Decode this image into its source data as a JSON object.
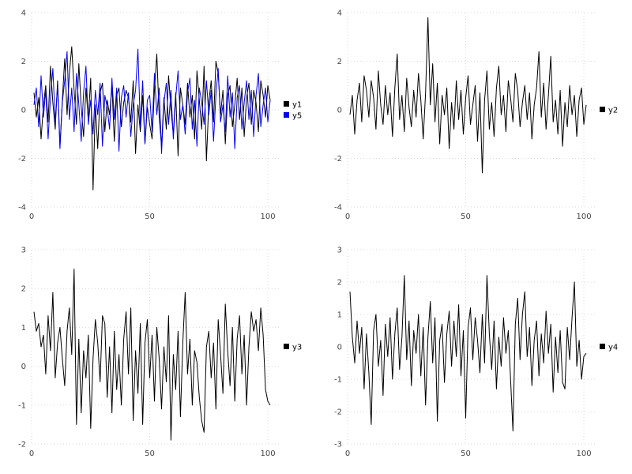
{
  "page": {
    "background": "#ffffff",
    "grid_color": "#d9d9d9",
    "tick_label_color": "#444444",
    "legend_text_color": "#000000"
  },
  "chart_data": [
    {
      "type": "line",
      "title": "",
      "xlabel": "",
      "ylabel": "",
      "xlim": [
        0,
        105
      ],
      "ylim": [
        -4,
        4
      ],
      "x_ticks": [
        0,
        50,
        100
      ],
      "y_ticks": [
        -4,
        -2,
        0,
        2,
        4
      ],
      "grid": "dotted",
      "legend_position": "right-center",
      "series": [
        {
          "name": "y1",
          "color": "#000000",
          "values": [
            0.7,
            -0.3,
            0.5,
            -1.2,
            0.2,
            1.0,
            -0.5,
            1.8,
            0.3,
            -0.8,
            1.2,
            -1.5,
            0.4,
            2.1,
            -0.2,
            1.5,
            2.6,
            0.8,
            -0.6,
            1.9,
            0.1,
            -1.1,
            0.9,
            -0.4,
            1.3,
            -3.3,
            0.2,
            -1.6,
            0.7,
            1.1,
            -0.9,
            0.4,
            -0.2,
            1.0,
            -1.3,
            0.6,
            0.9,
            -0.7,
            0.3,
            0.8,
            0.5,
            -0.5,
            1.2,
            -1.8,
            0.2,
            -0.9,
            0.6,
            -1.4,
            0.1,
            -0.6,
            -1.2,
            0.8,
            2.3,
            -0.3,
            -1.5,
            0.5,
            -0.8,
            1.4,
            0.0,
            -1.0,
            0.7,
            -1.9,
            0.9,
            0.2,
            -0.6,
            1.1,
            -0.3,
            0.6,
            -1.2,
            1.6,
            0.4,
            -0.8,
            1.8,
            -2.1,
            0.3,
            1.2,
            -0.5,
            2.0,
            1.5,
            -0.2,
            0.8,
            -1.4,
            0.6,
            1.0,
            -0.7,
            0.2,
            1.3,
            -0.4,
            0.9,
            -1.1,
            0.5,
            1.1,
            -0.6,
            0.8,
            0.3,
            -0.9,
            1.2,
            0.6,
            -0.3,
            1.0,
            0.4
          ]
        },
        {
          "name": "y5",
          "color": "#0000ee",
          "values": [
            0.2,
            0.9,
            -0.7,
            1.4,
            -0.3,
            0.8,
            -1.2,
            0.5,
            1.7,
            -0.5,
            1.0,
            -1.6,
            0.3,
            1.2,
            2.4,
            -0.4,
            0.9,
            -0.9,
            1.5,
            0.2,
            -1.3,
            0.7,
            1.8,
            -0.6,
            0.4,
            -1.0,
            0.8,
            -0.2,
            1.1,
            -1.5,
            0.6,
            0.1,
            -0.8,
            1.3,
            -0.4,
            0.9,
            -1.7,
            0.5,
            1.0,
            -0.3,
            0.7,
            -1.1,
            0.2,
            0.8,
            2.5,
            -0.7,
            1.2,
            -1.4,
            0.4,
            0.6,
            -0.9,
            1.5,
            -0.2,
            0.9,
            -1.8,
            0.3,
            1.1,
            -0.6,
            0.8,
            -1.2,
            0.5,
            1.6,
            -0.4,
            0.2,
            -1.0,
            0.7,
            1.3,
            -0.8,
            0.4,
            -1.5,
            0.9,
            0.3,
            -0.6,
            1.2,
            -0.2,
            0.8,
            -1.3,
            0.6,
            1.7,
            -0.5,
            0.2,
            -0.9,
            1.4,
            -0.3,
            0.7,
            -1.6,
            0.5,
            1.0,
            -0.8,
            0.3,
            1.2,
            -0.4,
            0.8,
            -1.1,
            0.6,
            1.5,
            -0.7,
            0.2,
            0.9,
            -0.5,
            0.4
          ]
        }
      ]
    },
    {
      "type": "line",
      "title": "",
      "xlabel": "",
      "ylabel": "",
      "xlim": [
        0,
        105
      ],
      "ylim": [
        -4,
        4
      ],
      "x_ticks": [
        0,
        50,
        100
      ],
      "y_ticks": [
        -4,
        -2,
        0,
        2,
        4
      ],
      "grid": "dotted",
      "legend_position": "right-center",
      "series": [
        {
          "name": "y2",
          "color": "#000000",
          "values": [
            -0.2,
            0.6,
            -1.0,
            0.4,
            1.1,
            -0.5,
            1.4,
            0.8,
            -0.3,
            1.2,
            0.5,
            -0.8,
            1.6,
            0.2,
            -0.6,
            1.0,
            -0.2,
            0.7,
            -1.1,
            0.9,
            2.3,
            -0.4,
            0.6,
            -0.9,
            1.3,
            0.1,
            -0.7,
            0.8,
            -0.3,
            1.5,
            0.4,
            -1.2,
            0.7,
            3.8,
            0.2,
            1.9,
            -0.5,
            1.1,
            -1.4,
            0.6,
            -0.2,
            0.9,
            -1.6,
            0.3,
            -0.8,
            1.2,
            -0.4,
            0.8,
            -1.0,
            0.5,
            1.4,
            -0.6,
            0.2,
            1.0,
            -1.3,
            0.7,
            -2.6,
            0.4,
            1.6,
            -0.8,
            0.3,
            -1.1,
            0.9,
            1.8,
            -0.2,
            0.6,
            -0.9,
            1.2,
            0.5,
            -0.5,
            1.5,
            0.8,
            -0.7,
            0.3,
            1.0,
            -0.4,
            0.7,
            -1.2,
            0.2,
            0.9,
            2.4,
            -0.3,
            1.1,
            -0.8,
            0.6,
            2.2,
            -0.5,
            0.4,
            -1.0,
            0.8,
            -1.5,
            0.3,
            -0.7,
            1.0,
            -0.2,
            0.6,
            -1.1,
            0.4,
            0.9,
            -0.6,
            0.2
          ]
        }
      ]
    },
    {
      "type": "line",
      "title": "",
      "xlabel": "",
      "ylabel": "",
      "xlim": [
        0,
        105
      ],
      "ylim": [
        -2,
        3
      ],
      "x_ticks": [
        0,
        50,
        100
      ],
      "y_ticks": [
        -2,
        -1,
        0,
        1,
        2,
        3
      ],
      "grid": "dotted",
      "legend_position": "right-center",
      "series": [
        {
          "name": "y3",
          "color": "#000000",
          "values": [
            1.4,
            0.9,
            1.1,
            0.5,
            0.8,
            -0.2,
            1.3,
            0.4,
            1.9,
            -0.3,
            0.6,
            1.0,
            0.2,
            -0.5,
            0.9,
            1.5,
            0.3,
            2.5,
            -1.5,
            0.7,
            -1.2,
            0.4,
            -0.3,
            0.8,
            -1.6,
            0.2,
            1.2,
            0.6,
            -0.4,
            1.3,
            1.1,
            -0.8,
            0.5,
            -1.2,
            0.9,
            -0.6,
            0.3,
            -1.0,
            0.7,
            1.4,
            -0.2,
            1.5,
            -1.4,
            0.4,
            -0.7,
            1.1,
            -1.5,
            0.6,
            1.2,
            -0.3,
            0.8,
            -0.9,
            1.0,
            0.2,
            -1.1,
            0.5,
            -0.4,
            1.3,
            -1.9,
            0.3,
            -0.6,
            0.9,
            -1.3,
            0.6,
            1.9,
            -0.2,
            0.7,
            -1.0,
            0.4,
            0.1,
            -0.8,
            -1.4,
            -1.7,
            0.5,
            0.9,
            -0.3,
            0.6,
            -1.1,
            1.2,
            0.3,
            -0.7,
            1.6,
            0.4,
            -0.5,
            1.0,
            -0.9,
            0.7,
            1.3,
            -0.2,
            0.8,
            -1.0,
            0.5,
            1.4,
            0.9,
            1.2,
            0.4,
            1.5,
            0.8,
            -0.6,
            -0.9,
            -1.0
          ]
        }
      ]
    },
    {
      "type": "line",
      "title": "",
      "xlabel": "",
      "ylabel": "",
      "xlim": [
        0,
        105
      ],
      "ylim": [
        -3,
        3
      ],
      "x_ticks": [
        0,
        50,
        100
      ],
      "y_ticks": [
        -3,
        -2,
        -1,
        0,
        1,
        2,
        3
      ],
      "grid": "dotted",
      "legend_position": "right-center",
      "series": [
        {
          "name": "y4",
          "color": "#000000",
          "values": [
            1.7,
            0.3,
            -0.5,
            0.8,
            -0.2,
            0.6,
            -1.3,
            0.4,
            -0.8,
            -2.4,
            0.5,
            1.0,
            -0.6,
            0.2,
            -1.5,
            0.7,
            -0.3,
            0.9,
            -1.0,
            0.4,
            1.2,
            -0.7,
            0.3,
            2.2,
            -0.4,
            0.8,
            -1.2,
            0.5,
            -0.2,
            1.0,
            -0.9,
            0.6,
            -1.8,
            0.3,
            1.4,
            -0.5,
            0.9,
            -2.3,
            0.2,
            0.7,
            -1.1,
            0.4,
            1.1,
            -0.6,
            0.8,
            -0.3,
            1.3,
            -0.9,
            0.5,
            -2.2,
            0.6,
            1.2,
            -0.4,
            0.9,
            0.2,
            -0.8,
            1.0,
            -0.5,
            2.2,
            0.4,
            -0.7,
            0.8,
            -1.3,
            0.3,
            -0.6,
            0.9,
            -0.2,
            0.5,
            -1.0,
            -2.6,
            0.7,
            1.5,
            -0.4,
            1.0,
            1.7,
            -0.3,
            0.6,
            -1.2,
            0.2,
            0.8,
            -0.9,
            0.4,
            -0.5,
            1.1,
            -0.2,
            0.7,
            -1.4,
            0.3,
            -0.8,
            0.5,
            -1.1,
            -1.3,
            0.6,
            -0.4,
            0.9,
            2.0,
            -0.6,
            0.2,
            -1.0,
            -0.3,
            -0.2
          ]
        }
      ]
    }
  ]
}
